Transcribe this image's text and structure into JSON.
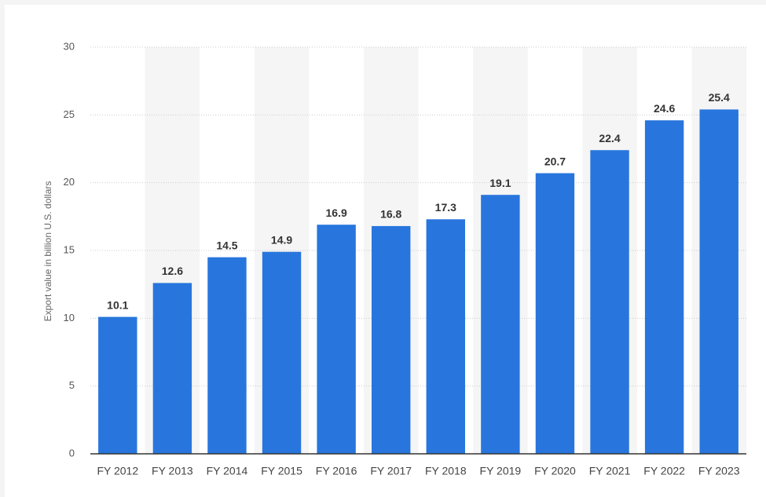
{
  "chart_data": {
    "type": "bar",
    "y_label": "Export value in billion U.S. dollars",
    "categories": [
      "FY 2012",
      "FY 2013",
      "FY 2014",
      "FY 2015",
      "FY 2016",
      "FY 2017",
      "FY 2018",
      "FY 2019",
      "FY 2020",
      "FY 2021",
      "FY 2022",
      "FY 2023"
    ],
    "values": [
      10.1,
      12.6,
      14.5,
      14.9,
      16.9,
      16.8,
      17.3,
      19.1,
      20.7,
      22.4,
      24.6,
      25.4
    ],
    "color": "#2876dd",
    "ylim": [
      0,
      30
    ],
    "yticks": [
      0,
      5,
      10,
      15,
      20,
      25,
      30
    ],
    "grid": true
  }
}
